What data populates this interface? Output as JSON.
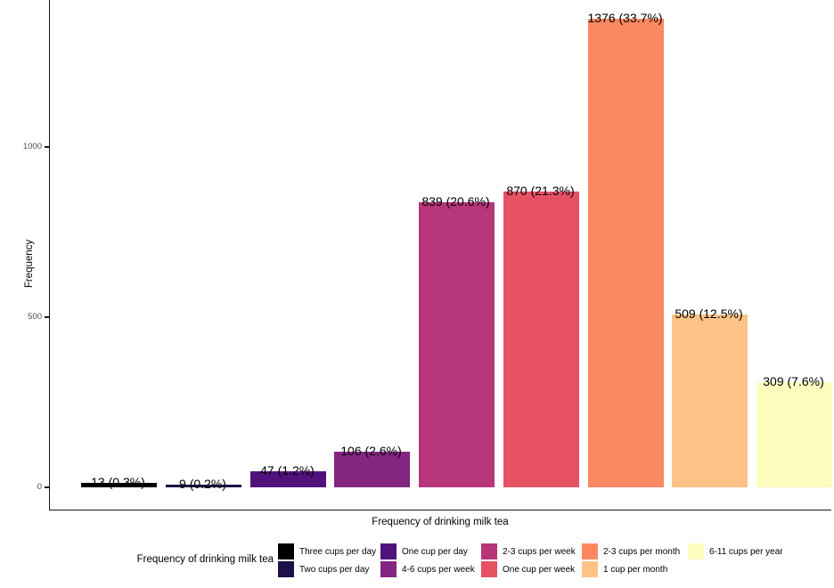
{
  "chart_data": {
    "type": "bar",
    "title": "",
    "xlabel": "Frequency of drinking milk tea",
    "ylabel": "Frequency",
    "categories": [
      "Three cups per day",
      "Two cups per day",
      "One cup per day",
      "4-6 cups per week",
      "2-3 cups per week",
      "One cup per week",
      "2-3 cups per month",
      "1 cup per month",
      "6-11 cups per year"
    ],
    "values": [
      13,
      9,
      47,
      106,
      839,
      870,
      1376,
      509,
      309
    ],
    "bar_labels": [
      "13 (0.3%)",
      "9 (0.2%)",
      "47 (1.2%)",
      "106 (2.6%)",
      "839 (20.6%)",
      "870 (21.3%)",
      "1376 (33.7%)",
      "509 (12.5%)",
      "309 (7.6%)"
    ],
    "colors": [
      "#000004",
      "#1D1147",
      "#51127C",
      "#822681",
      "#B63679",
      "#E65164",
      "#FB8861",
      "#FEC287",
      "#FCFDBF"
    ],
    "yticks": [
      0,
      500,
      1000
    ],
    "ylim": [
      0,
      1430
    ],
    "grid": false,
    "axis_text_color": "#4d4d4d",
    "axis_line_color": "#1a1a1a",
    "legend": {
      "title": "Frequency of drinking milk tea",
      "position": "bottom",
      "rows": 2
    }
  }
}
